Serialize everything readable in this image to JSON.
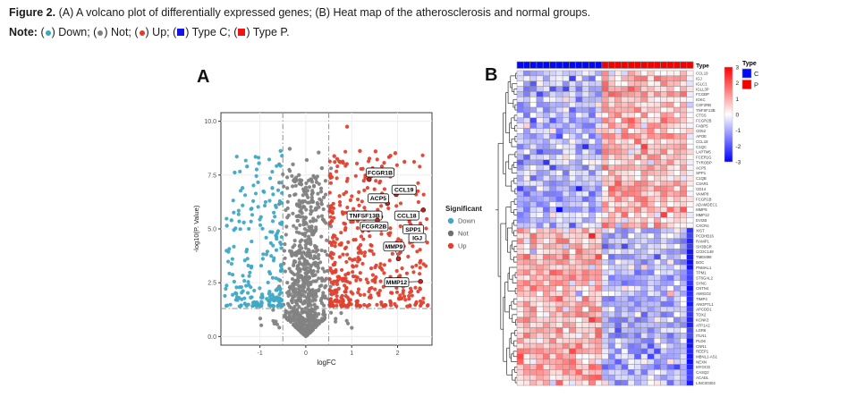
{
  "caption": {
    "figure_label": "Figure 2.",
    "text": "(A) A volcano plot of differentially expressed genes; (B) Heat map of the atherosclerosis and normal groups."
  },
  "note": {
    "label": "Note:",
    "items": [
      {
        "glyph": "circle",
        "color": "#3aa7c2",
        "label": "Down"
      },
      {
        "glyph": "circle",
        "color": "#7f7f7f",
        "label": "Not"
      },
      {
        "glyph": "circle",
        "color": "#e2392b",
        "label": "Up"
      },
      {
        "glyph": "square",
        "color": "#1414e8",
        "label": "Type C"
      },
      {
        "glyph": "square",
        "color": "#ee1414",
        "label": "Type P"
      }
    ]
  },
  "panels": {
    "a_label": "A",
    "b_label": "B"
  },
  "chart_data": [
    {
      "type": "scatter",
      "panel": "A",
      "title": "",
      "xlabel": "logFC",
      "ylabel": "-log10(P. Value)",
      "xlim": [
        -1.85,
        2.75
      ],
      "ylim": [
        -0.4,
        10.4
      ],
      "xticks": [
        "-1",
        "0",
        "1",
        "2"
      ],
      "yticks": [
        "0.0",
        "2.5",
        "5.0",
        "7.5",
        "10.0"
      ],
      "cutoffs": {
        "logfc_vlines": [
          -0.5,
          0.5
        ],
        "pvalue_hline": 1.3
      },
      "legend": {
        "title": "Significant",
        "entries": [
          {
            "label": "Down",
            "color": "#3fa9c5"
          },
          {
            "label": "Not",
            "color": "#6e6e6e"
          },
          {
            "label": "Up",
            "color": "#e2412f"
          }
        ]
      },
      "labeled_genes": [
        {
          "name": "FCGR1B",
          "label_x": 1.62,
          "label_y": 7.62,
          "x": 1.38,
          "y": 7.3
        },
        {
          "name": "CCL19",
          "label_x": 2.14,
          "label_y": 6.82,
          "x": 1.97,
          "y": 6.6
        },
        {
          "name": "ACP5",
          "label_x": 1.58,
          "label_y": 6.42,
          "x": 1.78,
          "y": 6.18
        },
        {
          "name": "TNFSF13B",
          "label_x": 1.28,
          "label_y": 5.62,
          "x": 1.63,
          "y": 5.56
        },
        {
          "name": "CCL18",
          "label_x": 2.2,
          "label_y": 5.62,
          "x": 2.56,
          "y": 5.88
        },
        {
          "name": "FCGR2B",
          "label_x": 1.49,
          "label_y": 5.12,
          "x": 1.56,
          "y": 5.4
        },
        {
          "name": "SPP1",
          "label_x": 2.34,
          "label_y": 4.98,
          "x": 2.5,
          "y": 4.82
        },
        {
          "name": "IGJ",
          "label_x": 2.43,
          "label_y": 4.58,
          "x": 2.56,
          "y": 4.62
        },
        {
          "name": "MMP9",
          "label_x": 1.92,
          "label_y": 4.18,
          "x": 2.02,
          "y": 3.62
        },
        {
          "name": "MMP12",
          "label_x": 1.98,
          "label_y": 2.52,
          "x": 2.5,
          "y": 2.56
        }
      ],
      "point_cloud": {
        "seed": 42,
        "not_n": 750,
        "down_n": 210,
        "up_n": 430
      },
      "extra_points": {
        "up": [
          [
            0.9,
            9.75
          ],
          [
            0.62,
            8.38
          ],
          [
            1.18,
            8.62
          ],
          [
            1.52,
            8.6
          ],
          [
            1.95,
            8.52
          ],
          [
            2.15,
            8.12
          ],
          [
            0.75,
            8.1
          ]
        ],
        "down": [
          [
            -0.55,
            8.62
          ],
          [
            -1.02,
            8.05
          ],
          [
            -1.28,
            7.9
          ],
          [
            -1.55,
            7.62
          ],
          [
            -1.38,
            6.9
          ],
          [
            -0.73,
            6.9
          ],
          [
            -1.62,
            5.4
          ],
          [
            -1.35,
            5.3
          ],
          [
            -1.72,
            5.15
          ]
        ],
        "not": [
          [
            -0.35,
            8.72
          ],
          [
            0.28,
            8.55
          ],
          [
            0.02,
            8.2
          ],
          [
            -0.28,
            8.0
          ],
          [
            0.35,
            7.82
          ],
          [
            -0.15,
            7.5
          ]
        ]
      }
    },
    {
      "type": "heatmap",
      "panel": "B",
      "column_annotation": {
        "title": "Type",
        "groups": [
          {
            "name": "C",
            "color": "#0008f5",
            "n_samples": 13
          },
          {
            "name": "P",
            "color": "#f50000",
            "n_samples": 14
          }
        ]
      },
      "row_labels": [
        "CCL19",
        "IGJ",
        "IGLC1",
        "IGLL3P",
        "FCGBP",
        "IGKC",
        "CSF2RB",
        "TNFSF13B",
        "CTSS",
        "FCGR2B",
        "FABP5",
        "CD52",
        "APOE",
        "CCL18",
        "C1QC",
        "LAPTM5",
        "FCER1G",
        "TYROBP",
        "ACP5",
        "SPP1",
        "C1QB",
        "C3AR1",
        "CD14",
        "VAMP8",
        "FCGR1B",
        "ADAMDEC1",
        "MMP9",
        "MMP12",
        "EVI2B",
        "CXCR4",
        "XIST",
        "PCDHB16",
        "RAMP1",
        "SH3BGR",
        "CCDC148",
        "TMEM98",
        "BOC",
        "PNMAL1",
        "TPM1",
        "ST6GAL2",
        "SYNC",
        "CNTN4",
        "AMIGO2",
        "TIMP4",
        "ANGPTL1",
        "APCDD1",
        "TOX2",
        "KCNK3",
        "ATP1A2",
        "LGR6",
        "ITLN1",
        "PLD6",
        "CNN1",
        "REEP1",
        "MBNL1-AS1",
        "NEXN",
        "MYOCD",
        "CASQ2",
        "ACADL",
        "LINC00302"
      ],
      "colorbar": {
        "ticks": [
          "3",
          "2",
          "1",
          "0",
          "-1",
          "-2",
          "-3"
        ],
        "high": "#ff0000",
        "mid": "#ffffff",
        "low": "#0000ff"
      },
      "legend": {
        "title": "Type",
        "entries": [
          {
            "label": "C",
            "color": "#0008f5"
          },
          {
            "label": "P",
            "color": "#f50000"
          }
        ]
      },
      "expression_pattern": {
        "rows_up_in_P": [
          0,
          29
        ],
        "rows_down_in_P": [
          30,
          59
        ],
        "seed": 7
      },
      "row_dendrogram": true
    }
  ]
}
